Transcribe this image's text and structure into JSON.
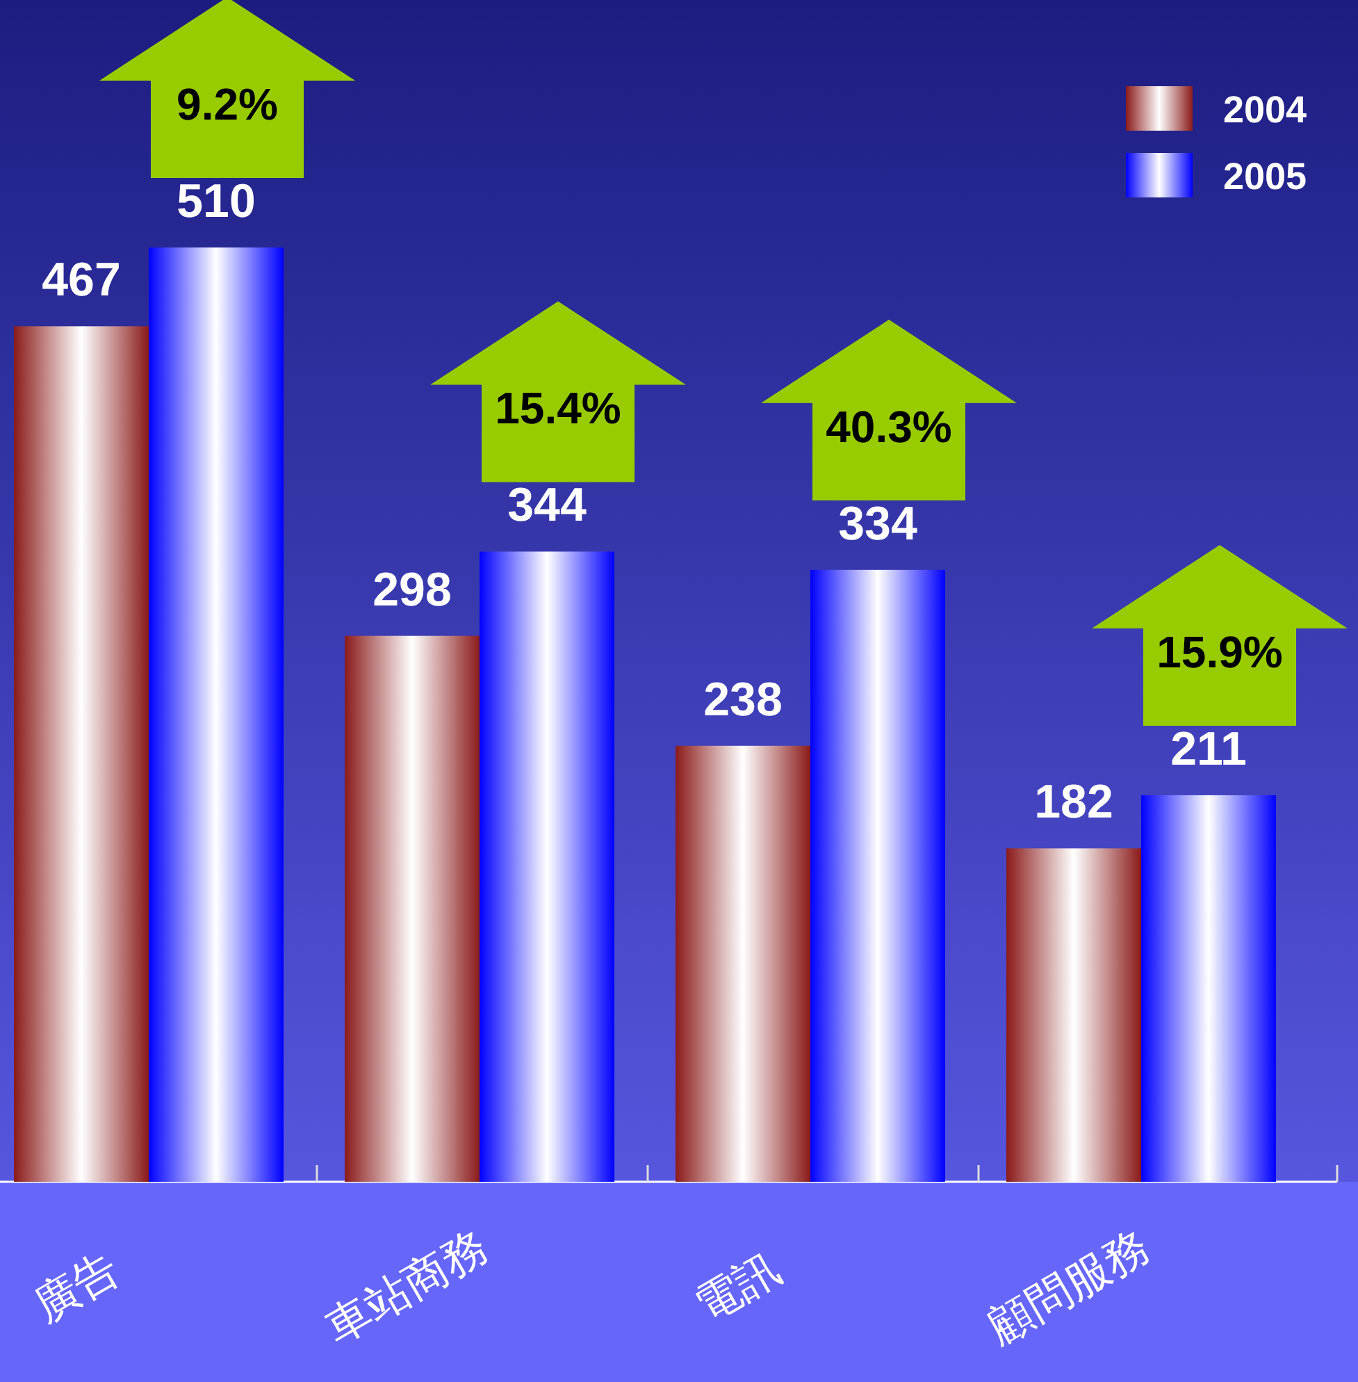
{
  "chart_data": {
    "type": "bar",
    "categories": [
      "廣告",
      "車站商務",
      "電訊",
      "顧問服務"
    ],
    "series": [
      {
        "name": "2004",
        "color": "#8b1a1a",
        "values": [
          467,
          298,
          238,
          182
        ]
      },
      {
        "name": "2005",
        "color": "#0000ff",
        "values": [
          510,
          344,
          334,
          211
        ]
      }
    ],
    "data_labels": true,
    "legend": "top right",
    "annotations": [
      "9.2%",
      "15.4%",
      "40.3%",
      "15.9%"
    ]
  }
}
